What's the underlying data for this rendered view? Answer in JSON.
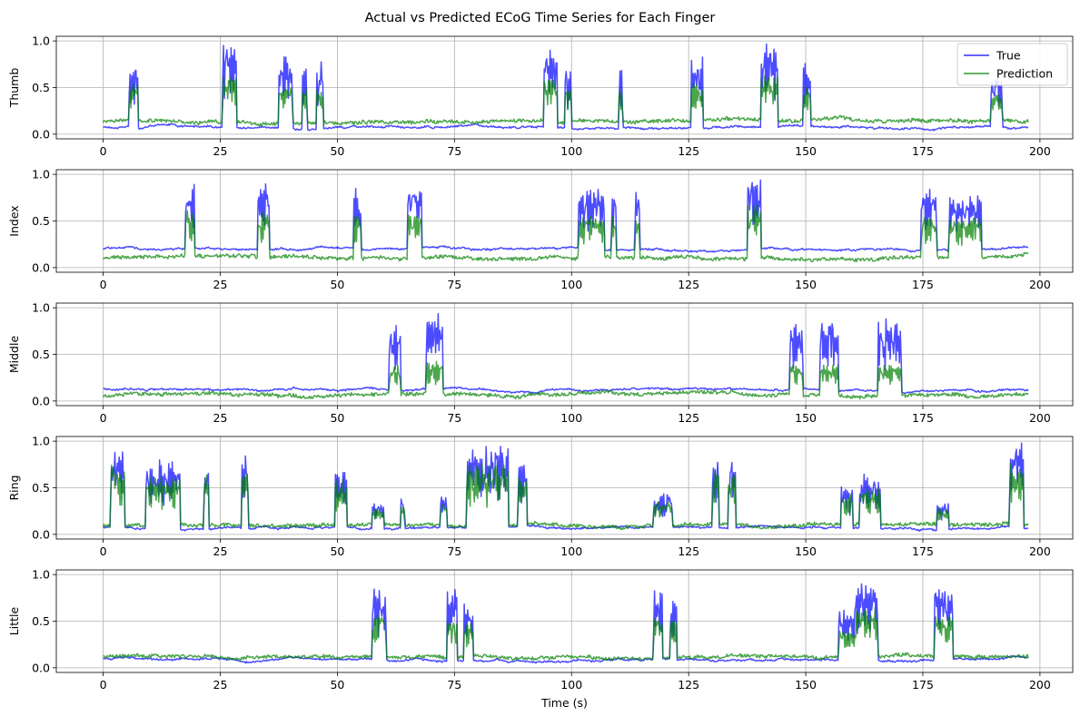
{
  "figure": {
    "title": "Actual vs Predicted ECoG Time Series for Each Finger",
    "colors": {
      "true": "#0000ff",
      "prediction": "#008000",
      "grid": "#b0b0b0"
    }
  },
  "legend": {
    "placement": "upper-right",
    "entries": [
      "True",
      "Prediction"
    ]
  },
  "chart_data": [
    {
      "type": "line",
      "ylabel": "Thumb",
      "xlabel": "",
      "grid": true,
      "xlim": [
        -10,
        207
      ],
      "ylim": [
        -0.05,
        1.05
      ],
      "xticks": [
        0,
        25,
        50,
        75,
        100,
        125,
        150,
        175,
        200
      ],
      "yticks": [
        0.0,
        0.5,
        1.0
      ],
      "bursts": [
        [
          5.5,
          7.5,
          0.85
        ],
        [
          25.5,
          28.5,
          1.0
        ],
        [
          37.5,
          40.5,
          0.85
        ],
        [
          42.5,
          43.5,
          0.75
        ],
        [
          45.5,
          47,
          0.8
        ],
        [
          94,
          97,
          1.0
        ],
        [
          98.5,
          100,
          0.8
        ],
        [
          110,
          111,
          0.75
        ],
        [
          125.5,
          128,
          0.85
        ],
        [
          140.5,
          144,
          1.0
        ],
        [
          149.5,
          151,
          0.8
        ],
        [
          189.5,
          192,
          0.7
        ]
      ],
      "series": [
        {
          "name": "True",
          "baseline": 0.07,
          "burst_peak_scale": 1.0
        },
        {
          "name": "Prediction",
          "baseline": 0.14,
          "burst_peak_scale": 0.65
        }
      ]
    },
    {
      "type": "line",
      "ylabel": "Index",
      "xlabel": "",
      "grid": true,
      "xlim": [
        -10,
        207
      ],
      "ylim": [
        -0.05,
        1.05
      ],
      "xticks": [
        0,
        25,
        50,
        75,
        100,
        125,
        150,
        175,
        200
      ],
      "yticks": [
        0.0,
        0.5,
        1.0
      ],
      "bursts": [
        [
          17.5,
          19.5,
          0.9
        ],
        [
          33,
          35.5,
          0.9
        ],
        [
          53.5,
          55,
          0.85
        ],
        [
          65,
          68,
          0.9
        ],
        [
          101.5,
          107,
          0.85
        ],
        [
          108.5,
          109.5,
          0.8
        ],
        [
          113.5,
          114.5,
          0.85
        ],
        [
          137.5,
          140.5,
          1.0
        ],
        [
          174.5,
          178,
          0.85
        ],
        [
          180.5,
          187.5,
          0.8
        ]
      ],
      "series": [
        {
          "name": "True",
          "baseline": 0.2,
          "burst_peak_scale": 1.0
        },
        {
          "name": "Prediction",
          "baseline": 0.11,
          "burst_peak_scale": 0.7
        }
      ]
    },
    {
      "type": "line",
      "ylabel": "Middle",
      "xlabel": "",
      "grid": true,
      "xlim": [
        -10,
        207
      ],
      "ylim": [
        -0.05,
        1.05
      ],
      "xticks": [
        0,
        25,
        50,
        75,
        100,
        125,
        150,
        175,
        200
      ],
      "yticks": [
        0.0,
        0.5,
        1.0
      ],
      "bursts": [
        [
          61,
          63.5,
          0.85
        ],
        [
          69,
          72.5,
          1.0
        ],
        [
          146.5,
          149.5,
          0.9
        ],
        [
          153,
          157,
          0.9
        ],
        [
          165.5,
          170.5,
          0.9
        ]
      ],
      "series": [
        {
          "name": "True",
          "baseline": 0.12,
          "burst_peak_scale": 1.0
        },
        {
          "name": "Prediction",
          "baseline": 0.07,
          "burst_peak_scale": 0.45
        }
      ]
    },
    {
      "type": "line",
      "ylabel": "Ring",
      "xlabel": "",
      "grid": true,
      "xlim": [
        -10,
        207
      ],
      "ylim": [
        -0.05,
        1.05
      ],
      "xticks": [
        0,
        25,
        50,
        75,
        100,
        125,
        150,
        175,
        200
      ],
      "yticks": [
        0.0,
        0.5,
        1.0
      ],
      "bursts": [
        [
          1.5,
          4.5,
          0.95
        ],
        [
          9,
          16.5,
          0.8
        ],
        [
          21.5,
          22.5,
          0.85
        ],
        [
          29.5,
          31,
          0.9
        ],
        [
          49.5,
          52,
          0.75
        ],
        [
          57.5,
          60,
          0.35
        ],
        [
          63.5,
          64.5,
          0.4
        ],
        [
          72,
          73.5,
          0.45
        ],
        [
          77.5,
          86.5,
          0.95
        ],
        [
          88.5,
          90.5,
          0.8
        ],
        [
          117.5,
          121.5,
          0.45
        ],
        [
          130,
          131.5,
          0.9
        ],
        [
          133.5,
          135,
          0.85
        ],
        [
          157.5,
          160,
          0.55
        ],
        [
          161.5,
          166,
          0.65
        ],
        [
          178,
          180.5,
          0.35
        ],
        [
          193.5,
          196.5,
          1.0
        ]
      ],
      "series": [
        {
          "name": "True",
          "baseline": 0.07,
          "burst_peak_scale": 1.0
        },
        {
          "name": "Prediction",
          "baseline": 0.1,
          "burst_peak_scale": 0.8
        }
      ]
    },
    {
      "type": "line",
      "ylabel": "Little",
      "xlabel": "Time (s)",
      "grid": true,
      "xlim": [
        -10,
        207
      ],
      "ylim": [
        -0.05,
        1.05
      ],
      "xticks": [
        0,
        25,
        50,
        75,
        100,
        125,
        150,
        175,
        200
      ],
      "yticks": [
        0.0,
        0.5,
        1.0
      ],
      "bursts": [
        [
          57.5,
          60.5,
          0.9
        ],
        [
          73.5,
          75.5,
          0.85
        ],
        [
          77,
          79,
          0.75
        ],
        [
          117.5,
          119.5,
          0.9
        ],
        [
          121,
          122.5,
          0.85
        ],
        [
          157,
          160.5,
          0.65
        ],
        [
          160.5,
          165.5,
          1.0
        ],
        [
          177.5,
          181.5,
          0.9
        ]
      ],
      "series": [
        {
          "name": "True",
          "baseline": 0.09,
          "burst_peak_scale": 1.0
        },
        {
          "name": "Prediction",
          "baseline": 0.12,
          "burst_peak_scale": 0.65
        }
      ]
    }
  ]
}
